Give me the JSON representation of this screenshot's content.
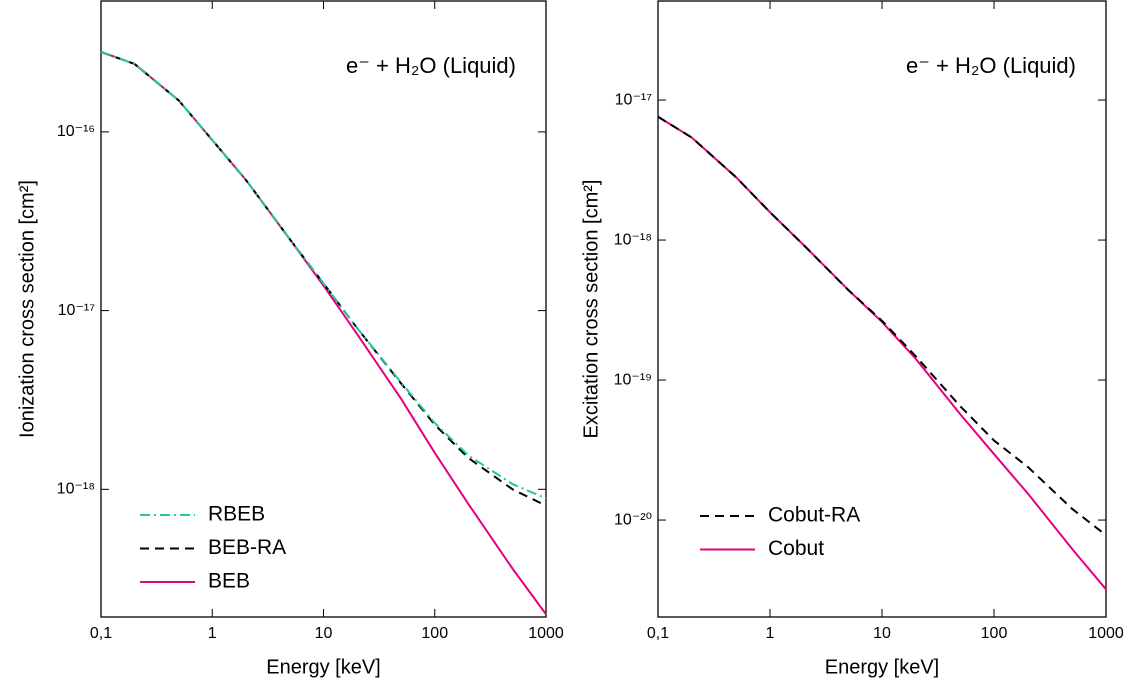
{
  "chart_data": [
    {
      "type": "line",
      "annotation": "e⁻ + H₂O (Liquid)",
      "xlabel": "Energy [keV]",
      "ylabel": "Ionization cross section [cm²]",
      "xscale": "log",
      "yscale": "log",
      "xlim": [
        0.1,
        1000
      ],
      "ylim": [
        1.93e-19,
        5.4e-16
      ],
      "xticks": [
        {
          "value": 0.1,
          "label": "0,1"
        },
        1,
        10,
        100,
        1000
      ],
      "yticks": [
        {
          "value": 1e-18,
          "label": "10⁻¹⁸"
        },
        {
          "value": 1e-17,
          "label": "10⁻¹⁷"
        },
        {
          "value": 1e-16,
          "label": "10⁻¹⁶"
        }
      ],
      "legend": "lower left",
      "x": [
        0.1,
        0.2,
        0.5,
        1,
        2,
        5,
        10,
        20,
        50,
        100,
        200,
        500,
        1000
      ],
      "series": [
        {
          "name": "RBEB",
          "color": "#1fc99c",
          "style": "dashdot",
          "values": [
            2.8e-16,
            2.4e-16,
            1.5e-16,
            9e-17,
            5.4e-17,
            2.5e-17,
            1.42e-17,
            8e-18,
            3.95e-18,
            2.35e-18,
            1.55e-18,
            1.07e-18,
            8.9e-19
          ]
        },
        {
          "name": "BEB-RA",
          "color": "#000000",
          "style": "dashed",
          "values": [
            2.8e-16,
            2.4e-16,
            1.5e-16,
            9e-17,
            5.4e-17,
            2.5e-17,
            1.42e-17,
            8e-18,
            3.9e-18,
            2.3e-18,
            1.5e-18,
            1e-18,
            8.1e-19
          ]
        },
        {
          "name": "BEB",
          "color": "#e6007e",
          "style": "solid",
          "values": [
            2.8e-16,
            2.4e-16,
            1.5e-16,
            9e-17,
            5.4e-17,
            2.5e-17,
            1.38e-17,
            7.4e-18,
            3.2e-18,
            1.6e-18,
            8.3e-19,
            3.6e-19,
            2e-19
          ]
        }
      ]
    },
    {
      "type": "line",
      "annotation": "e⁻ + H₂O (Liquid)",
      "xlabel": "Energy [keV]",
      "ylabel": "Excitation cross section [cm²]",
      "xscale": "log",
      "yscale": "log",
      "xlim": [
        0.1,
        1000
      ],
      "ylim": [
        2.03e-21,
        5.1e-17
      ],
      "xticks": [
        {
          "value": 0.1,
          "label": "0,1"
        },
        1,
        10,
        100,
        1000
      ],
      "yticks": [
        {
          "value": 1e-20,
          "label": "10⁻²⁰"
        },
        {
          "value": 1e-19,
          "label": "10⁻¹⁹"
        },
        {
          "value": 1e-18,
          "label": "10⁻¹⁸"
        },
        {
          "value": 1e-17,
          "label": "10⁻¹⁷"
        }
      ],
      "legend": "lower left",
      "x": [
        0.1,
        0.2,
        0.5,
        1,
        2,
        5,
        10,
        20,
        50,
        100,
        200,
        500,
        1000
      ],
      "series": [
        {
          "name": "Cobut-RA",
          "color": "#000000",
          "style": "dashed",
          "values": [
            7.6e-18,
            5.4e-18,
            2.8e-18,
            1.58e-18,
            9.2e-19,
            4.4e-19,
            2.65e-19,
            1.48e-19,
            6.5e-20,
            3.7e-20,
            2.4e-20,
            1.2e-20,
            7.8e-21
          ]
        },
        {
          "name": "Cobut",
          "color": "#e6007e",
          "style": "solid",
          "values": [
            7.6e-18,
            5.4e-18,
            2.8e-18,
            1.58e-18,
            9.2e-19,
            4.4e-19,
            2.6e-19,
            1.42e-19,
            5.7e-20,
            2.96e-20,
            1.55e-20,
            6.2e-21,
            3.2e-21
          ]
        }
      ]
    }
  ]
}
